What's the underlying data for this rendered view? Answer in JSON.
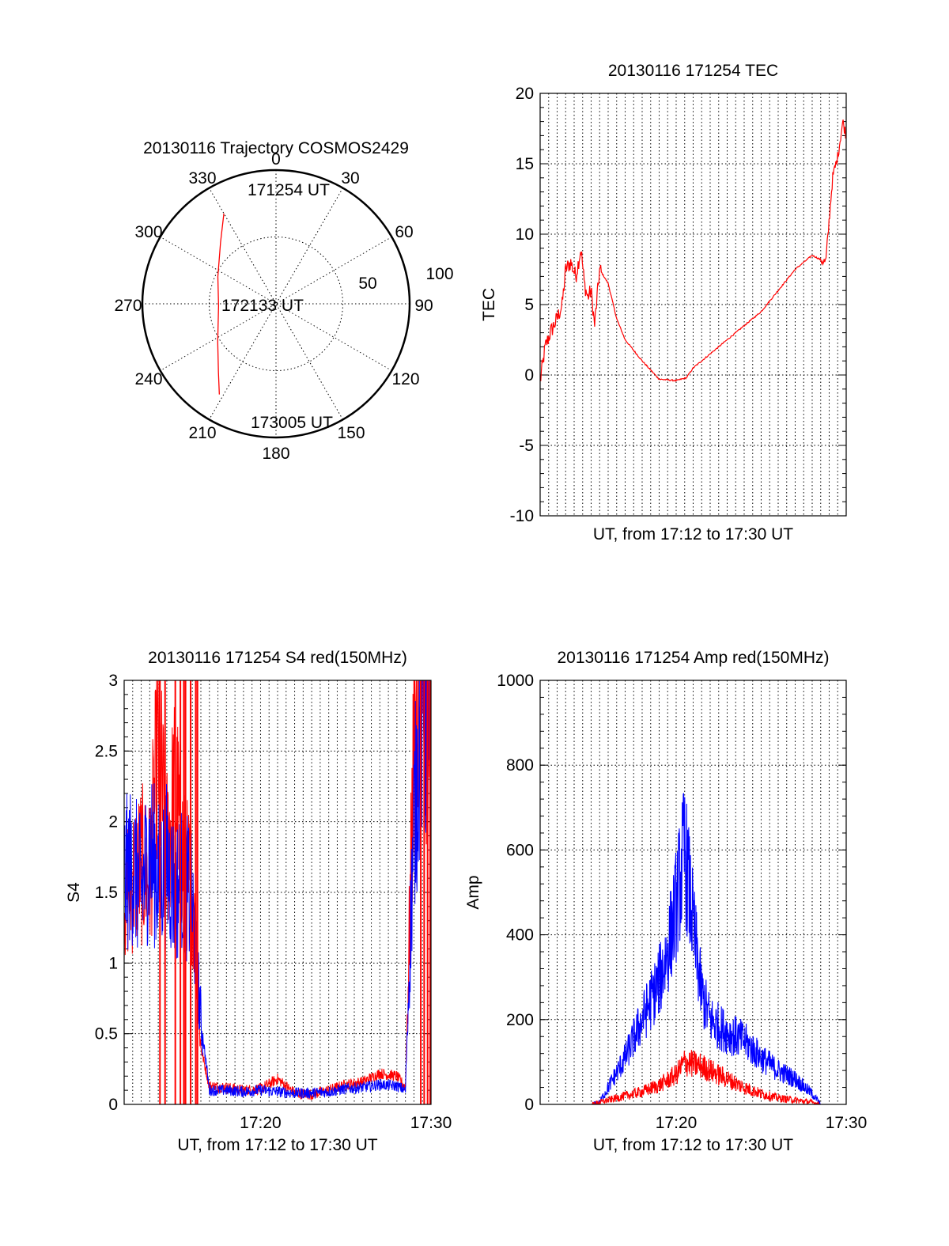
{
  "chart_data": [
    {
      "type": "polar",
      "title": "20130116 Trajectory COSMOS2429",
      "azimuth_labels": [
        "0",
        "30",
        "60",
        "90",
        "120",
        "150",
        "180",
        "210",
        "240",
        "270",
        "300",
        "330"
      ],
      "radius_labels": [
        "50",
        "100"
      ],
      "series": [
        {
          "color": "#ff0000",
          "points": [
            {
              "az": 330,
              "r": 78
            },
            {
              "az": 318,
              "r": 62
            },
            {
              "az": 295,
              "r": 48
            },
            {
              "az": 268,
              "r": 43
            },
            {
              "az": 237,
              "r": 52
            },
            {
              "az": 220,
              "r": 67
            },
            {
              "az": 212,
              "r": 80
            }
          ]
        }
      ],
      "annotations": [
        "171254 UT",
        "172133 UT",
        "173005 UT"
      ]
    },
    {
      "type": "line",
      "title": "20130116 171254 TEC",
      "xlabel": "UT, from 17:12 to 17:30 UT",
      "ylabel": "TEC",
      "xlim": [
        0,
        18
      ],
      "ylim": [
        -10,
        20
      ],
      "yticks": [
        "-10",
        "-5",
        "0",
        "5",
        "10",
        "15",
        "20"
      ],
      "grid": true,
      "series": [
        {
          "color": "#ff0000",
          "x": [
            0.0,
            0.3,
            0.6,
            1.0,
            1.3,
            1.5,
            1.8,
            2.1,
            2.4,
            2.6,
            2.8,
            3.0,
            3.2,
            3.5,
            4.0,
            4.5,
            5.0,
            6.0,
            7.0,
            8.0,
            8.6,
            9.0,
            10.0,
            11.0,
            12.0,
            13.0,
            14.0,
            15.0,
            16.0,
            16.8,
            17.2,
            17.5,
            17.8,
            18.0
          ],
          "y": [
            -0.5,
            2.0,
            3.0,
            4.0,
            5.0,
            7.5,
            8.0,
            7.0,
            9.0,
            6.5,
            5.5,
            6.0,
            3.5,
            7.5,
            6.5,
            4.0,
            2.5,
            1.0,
            -0.3,
            -0.4,
            -0.2,
            0.5,
            1.5,
            2.5,
            3.5,
            4.5,
            6.0,
            7.5,
            8.5,
            8.0,
            14.0,
            15.5,
            18.0,
            17.0
          ]
        }
      ]
    },
    {
      "type": "line",
      "title": "20130116 171254 S4 red(150MHz)",
      "xlabel": "UT, from 17:12 to 17:30 UT",
      "ylabel": "S4",
      "xlim": [
        0,
        18
      ],
      "ylim": [
        0,
        3
      ],
      "xticks": [
        "17:20",
        "17:30"
      ],
      "yticks": [
        "0",
        "0.5",
        "1",
        "1.5",
        "2",
        "2.5",
        "3"
      ],
      "grid": true,
      "series": [
        {
          "color": "#ff0000",
          "x": [
            0.0,
            0.5,
            1.0,
            1.5,
            2.0,
            2.5,
            3.0,
            3.5,
            4.0,
            4.5,
            5.0,
            6.0,
            7.0,
            8.0,
            9.0,
            10.0,
            11.0,
            12.0,
            13.0,
            14.0,
            15.0,
            16.0,
            16.5,
            17.0,
            17.5,
            18.0
          ],
          "y": [
            1.5,
            1.6,
            1.7,
            1.6,
            2.5,
            1.8,
            2.2,
            1.7,
            1.5,
            0.4,
            0.13,
            0.12,
            0.1,
            0.11,
            0.18,
            0.08,
            0.07,
            0.1,
            0.14,
            0.16,
            0.22,
            0.2,
            0.12,
            2.5,
            3.0,
            2.5
          ]
        },
        {
          "color": "#0000ff",
          "x": [
            0.0,
            0.5,
            1.0,
            1.5,
            2.0,
            2.5,
            3.0,
            3.5,
            4.0,
            4.5,
            5.0,
            6.0,
            7.0,
            8.0,
            9.0,
            10.0,
            11.0,
            12.0,
            13.0,
            14.0,
            15.0,
            16.0,
            16.5,
            17.0,
            17.5,
            18.0
          ],
          "y": [
            1.6,
            1.7,
            1.5,
            1.8,
            1.6,
            1.7,
            1.5,
            1.6,
            1.4,
            0.6,
            0.1,
            0.1,
            0.09,
            0.1,
            0.09,
            0.08,
            0.08,
            0.09,
            0.11,
            0.12,
            0.14,
            0.13,
            0.1,
            2.0,
            2.8,
            2.7
          ]
        }
      ]
    },
    {
      "type": "line",
      "title": "20130116 171254 Amp red(150MHz)",
      "xlabel": "UT, from 17:12 to 17:30 UT",
      "ylabel": "Amp",
      "xlim": [
        0,
        18
      ],
      "ylim": [
        0,
        1000
      ],
      "xticks": [
        "17:20",
        "17:30"
      ],
      "yticks": [
        "0",
        "200",
        "400",
        "600",
        "800",
        "1000"
      ],
      "grid": true,
      "series": [
        {
          "color": "#0000ff",
          "x": [
            0,
            2,
            3,
            3.5,
            4,
            5,
            6,
            7,
            7.5,
            8,
            8.5,
            9,
            9.5,
            10,
            11,
            12,
            13,
            14,
            15,
            16,
            16.5,
            18
          ],
          "y": [
            0,
            0,
            0,
            5,
            40,
            110,
            200,
            290,
            360,
            470,
            600,
            420,
            260,
            200,
            170,
            150,
            110,
            80,
            60,
            25,
            0,
            0
          ]
        },
        {
          "color": "#ff0000",
          "x": [
            0,
            3,
            3.5,
            4,
            5,
            6,
            7,
            8,
            8.5,
            9,
            9.5,
            10,
            11,
            12,
            13,
            14,
            15,
            16,
            16.5,
            18
          ],
          "y": [
            0,
            0,
            5,
            10,
            20,
            30,
            45,
            70,
            100,
            95,
            90,
            80,
            60,
            40,
            25,
            15,
            10,
            5,
            0,
            0
          ]
        }
      ]
    }
  ]
}
